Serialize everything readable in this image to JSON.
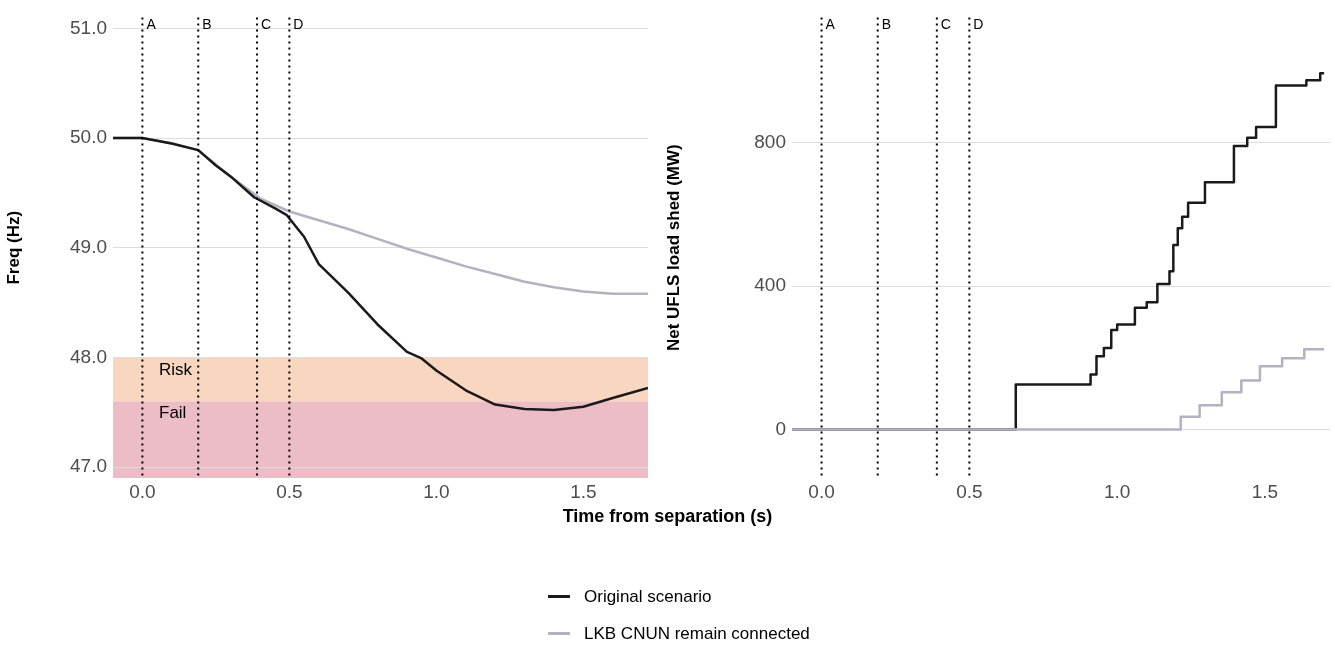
{
  "chart_data": [
    {
      "type": "line",
      "xlabel": "Time from separation (s)",
      "ylabel": "Freq (Hz)",
      "xlim": [
        -0.1,
        1.72
      ],
      "ylim": [
        46.9,
        51.1
      ],
      "xticks": [
        {
          "value": 0,
          "label": "0.0"
        },
        {
          "value": 0.5,
          "label": "0.5"
        },
        {
          "value": 1,
          "label": "1.0"
        },
        {
          "value": 1.5,
          "label": "1.5"
        }
      ],
      "yticks": [
        {
          "value": 47,
          "label": "47.0"
        },
        {
          "value": 48,
          "label": "48.0"
        },
        {
          "value": 49,
          "label": "49.0"
        },
        {
          "value": 50,
          "label": "50.0"
        },
        {
          "value": 51,
          "label": "51.0"
        }
      ],
      "grid": "y",
      "legend": "bottom",
      "line_style": "solid",
      "marker": "none",
      "bands": [
        {
          "axis": "y",
          "from": 46.9,
          "to": 47.6,
          "label": "Fail",
          "color": "#ecbdc7"
        },
        {
          "axis": "y",
          "from": 47.6,
          "to": 48.0,
          "label": "Risk",
          "color": "#f9d6bf"
        }
      ],
      "ref_lines": [
        {
          "axis": "x",
          "value": 0,
          "label": "A",
          "color": "#000000",
          "line_style": "dotted"
        },
        {
          "axis": "x",
          "value": 0.19,
          "label": "B",
          "color": "#000000",
          "line_style": "dotted"
        },
        {
          "axis": "x",
          "value": 0.39,
          "label": "C",
          "color": "#000000",
          "line_style": "dotted"
        },
        {
          "axis": "x",
          "value": 0.5,
          "label": "D",
          "color": "#000000",
          "line_style": "dotted"
        }
      ],
      "series": [
        {
          "name": "Original scenario",
          "color": "#1a1a1a",
          "x": [
            -0.1,
            0,
            0.1,
            0.19,
            0.25,
            0.3,
            0.38,
            0.45,
            0.49,
            0.55,
            0.6,
            0.7,
            0.8,
            0.9,
            0.95,
            1.0,
            1.1,
            1.2,
            1.3,
            1.4,
            1.5,
            1.6,
            1.72
          ],
          "values": [
            50.0,
            50.0,
            49.95,
            49.89,
            49.75,
            49.65,
            49.46,
            49.36,
            49.3,
            49.1,
            48.85,
            48.59,
            48.3,
            48.05,
            47.99,
            47.88,
            47.7,
            47.57,
            47.53,
            47.52,
            47.55,
            47.63,
            47.72
          ]
        },
        {
          "name": "LKB CNUN remain connected",
          "color": "#b3b2c0",
          "x": [
            -0.1,
            0,
            0.1,
            0.19,
            0.3,
            0.4,
            0.5,
            0.6,
            0.7,
            0.8,
            0.9,
            1.0,
            1.1,
            1.2,
            1.3,
            1.4,
            1.5,
            1.6,
            1.72
          ],
          "values": [
            50.0,
            50.0,
            49.95,
            49.89,
            49.65,
            49.45,
            49.33,
            49.25,
            49.17,
            49.08,
            48.99,
            48.91,
            48.83,
            48.76,
            48.69,
            48.64,
            48.6,
            48.58,
            48.58
          ]
        }
      ]
    },
    {
      "type": "step",
      "ylabel": "Net UFLS load shed (MW)",
      "xlim": [
        -0.1,
        1.72
      ],
      "ylim": [
        -135,
        1150
      ],
      "xticks": [
        {
          "value": 0,
          "label": "0.0"
        },
        {
          "value": 0.5,
          "label": "0.5"
        },
        {
          "value": 1,
          "label": "1.0"
        },
        {
          "value": 1.5,
          "label": "1.5"
        }
      ],
      "yticks": [
        0,
        400,
        800
      ],
      "grid": "y",
      "line_style": "solid",
      "marker": "none",
      "ref_lines": [
        {
          "axis": "x",
          "value": 0,
          "label": "A",
          "color": "#000000",
          "line_style": "dotted"
        },
        {
          "axis": "x",
          "value": 0.19,
          "label": "B",
          "color": "#000000",
          "line_style": "dotted"
        },
        {
          "axis": "x",
          "value": 0.39,
          "label": "C",
          "color": "#000000",
          "line_style": "dotted"
        },
        {
          "axis": "x",
          "value": 0.5,
          "label": "D",
          "color": "#000000",
          "line_style": "dotted"
        }
      ],
      "series": [
        {
          "color": "#b3b2c0",
          "x": [
            -0.1,
            1.215,
            1.279,
            1.354,
            1.42,
            1.483,
            1.558,
            1.633,
            1.7
          ],
          "values": [
            0,
            36,
            68,
            104,
            137,
            177,
            199,
            224,
            224
          ]
        },
        {
          "color": "#1a1a1a",
          "x": [
            -0.1,
            0.657,
            0.91,
            0.93,
            0.955,
            0.98,
            1.0,
            1.06,
            1.1,
            1.136,
            1.177,
            1.19,
            1.205,
            1.22,
            1.24,
            1.297,
            1.395,
            1.44,
            1.47,
            1.537,
            1.64,
            1.687,
            1.7
          ],
          "values": [
            0,
            126,
            154,
            205,
            228,
            278,
            293,
            340,
            355,
            406,
            442,
            515,
            562,
            594,
            633,
            690,
            791,
            814,
            844,
            960,
            975,
            994,
            994
          ]
        }
      ]
    }
  ]
}
